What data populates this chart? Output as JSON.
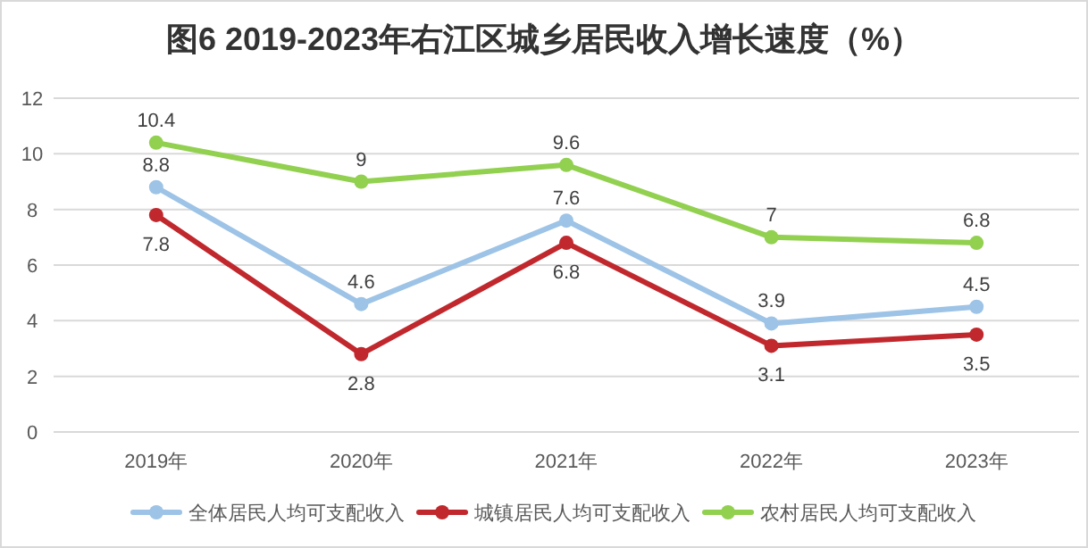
{
  "chart_data": {
    "type": "line",
    "title": "图6  2019-2023年右江区城乡居民收入增长速度（%）",
    "categories": [
      "2019年",
      "2020年",
      "2021年",
      "2022年",
      "2023年"
    ],
    "series": [
      {
        "name": "全体居民人均可支配收入",
        "color": "#9dc3e6",
        "values": [
          8.8,
          4.6,
          7.6,
          3.9,
          4.5
        ]
      },
      {
        "name": "城镇居民人均可支配收入",
        "color": "#c0282d",
        "values": [
          7.8,
          2.8,
          6.8,
          3.1,
          3.5
        ]
      },
      {
        "name": "农村居民人均可支配收入",
        "color": "#92d050",
        "values": [
          10.4,
          9,
          9.6,
          7,
          6.8
        ]
      }
    ],
    "ylim": [
      0,
      12
    ],
    "yticks": [
      0,
      2,
      4,
      6,
      8,
      10,
      12
    ],
    "grid": "y",
    "legend": "bottom",
    "marker": "circle",
    "data_labels": true
  }
}
